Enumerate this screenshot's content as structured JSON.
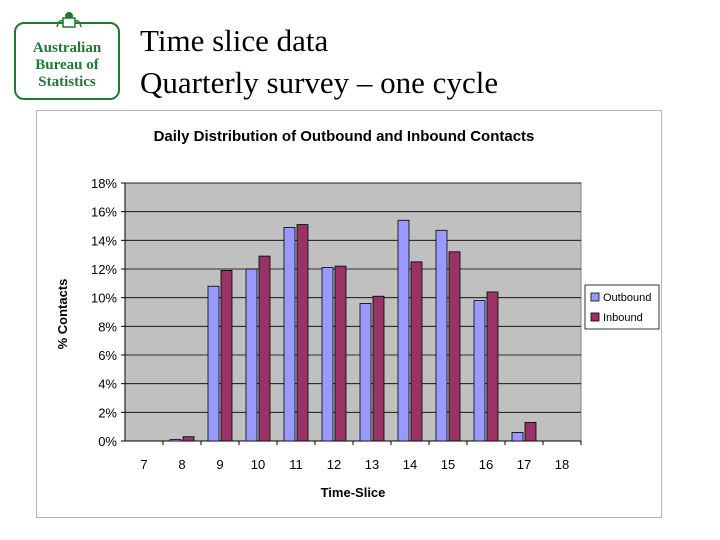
{
  "logo": {
    "lines": [
      "Australian",
      "Bureau of",
      "Statistics"
    ]
  },
  "slide": {
    "title_line1": "Time slice data",
    "title_line2": "Quarterly survey – one cycle"
  },
  "colors": {
    "outbound": "#9999ff",
    "inbound": "#993366",
    "plot_bg": "#c0c0c0",
    "logo_green": "#1f7a32"
  },
  "chart_data": {
    "type": "bar",
    "title": "Daily Distribution of Outbound and Inbound Contacts",
    "xlabel": "Time-Slice",
    "ylabel": "% Contacts",
    "categories": [
      "7",
      "8",
      "9",
      "10",
      "11",
      "12",
      "13",
      "14",
      "15",
      "16",
      "17",
      "18"
    ],
    "ylim": [
      0,
      18
    ],
    "yticks": [
      "0%",
      "2%",
      "4%",
      "6%",
      "8%",
      "10%",
      "12%",
      "14%",
      "16%",
      "18%"
    ],
    "grid": true,
    "legend_position": "right",
    "series": [
      {
        "name": "Outbound",
        "color": "#9999ff",
        "values": [
          0,
          0.1,
          10.8,
          12.0,
          14.9,
          12.1,
          9.6,
          15.4,
          14.7,
          9.8,
          0.6,
          0
        ]
      },
      {
        "name": "Inbound",
        "color": "#993366",
        "values": [
          0,
          0.3,
          11.9,
          12.9,
          15.1,
          12.2,
          10.1,
          12.5,
          13.2,
          10.4,
          1.3,
          0
        ]
      }
    ]
  }
}
